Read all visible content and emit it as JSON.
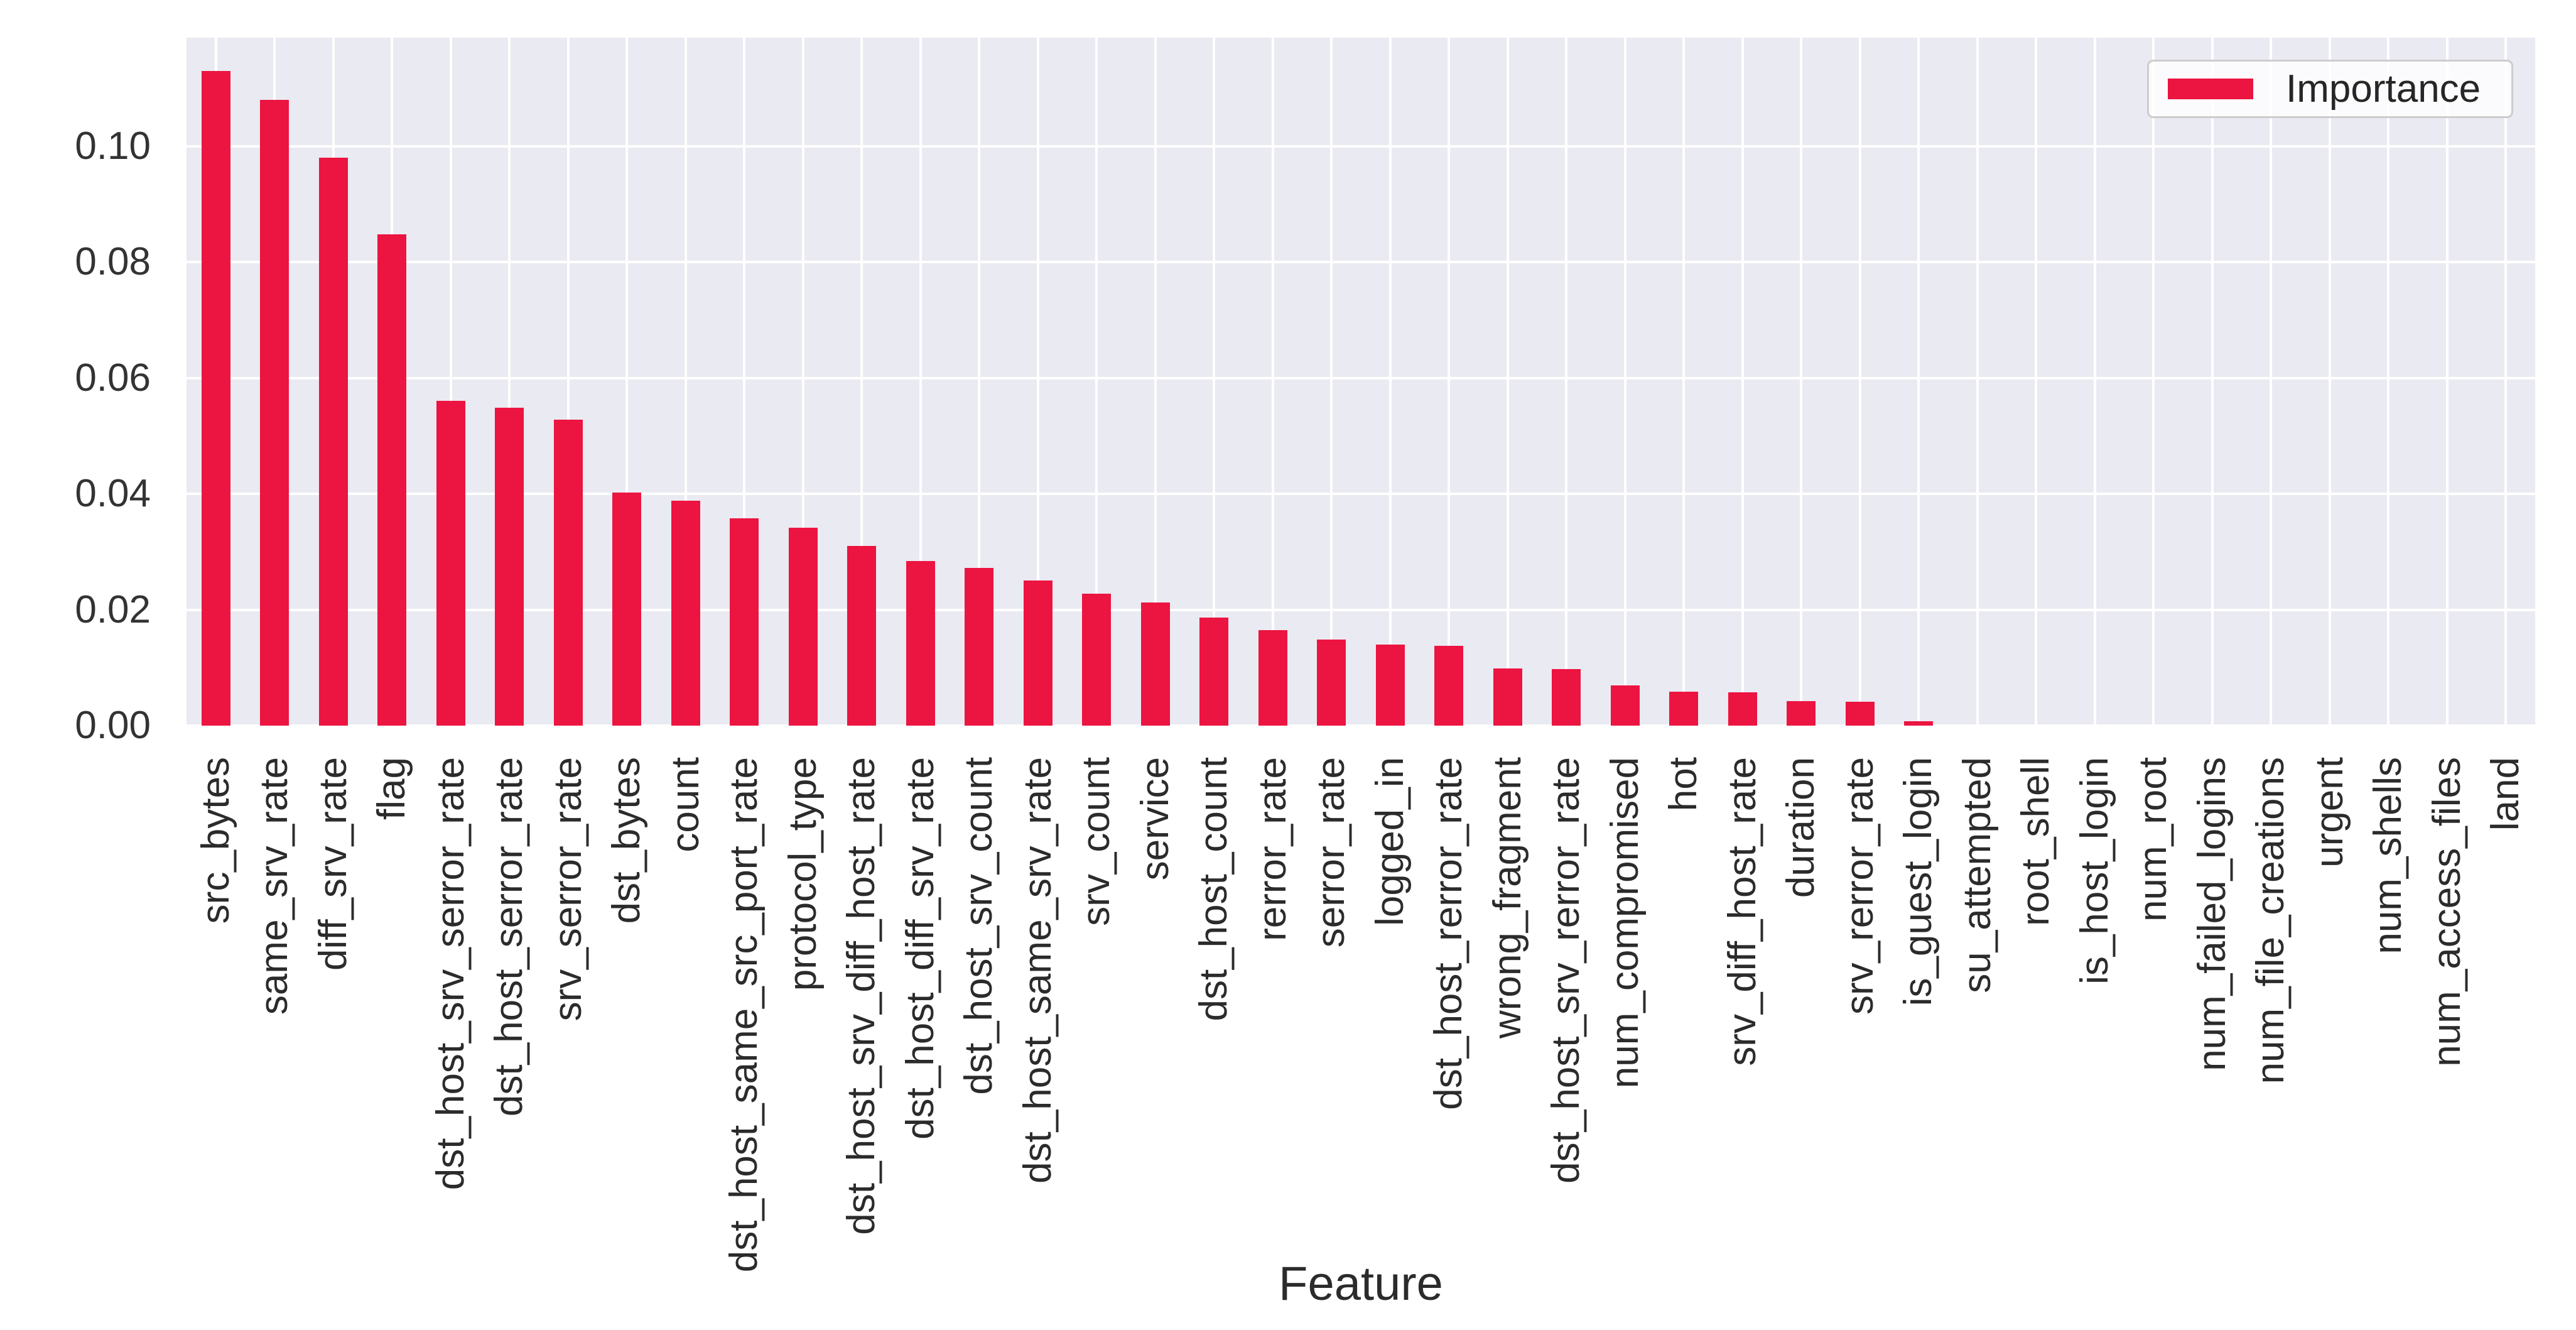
{
  "chart_data": {
    "type": "bar",
    "title": "",
    "xlabel": "Feature",
    "ylabel": "",
    "grid": true,
    "legend": {
      "label": "Importance",
      "position": "upper right"
    },
    "ylim": [
      0,
      0.1187
    ],
    "yticks": {
      "values": [
        0,
        0.02,
        0.04,
        0.06,
        0.08,
        0.1
      ],
      "labels": [
        "0.00",
        "0.02",
        "0.04",
        "0.06",
        "0.08",
        "0.10"
      ]
    },
    "categories": [
      "src_bytes",
      "same_srv_rate",
      "diff_srv_rate",
      "flag",
      "dst_host_srv_serror_rate",
      "dst_host_serror_rate",
      "srv_serror_rate",
      "dst_bytes",
      "count",
      "dst_host_same_src_port_rate",
      "protocol_type",
      "dst_host_srv_diff_host_rate",
      "dst_host_diff_srv_rate",
      "dst_host_srv_count",
      "dst_host_same_srv_rate",
      "srv_count",
      "service",
      "dst_host_count",
      "rerror_rate",
      "serror_rate",
      "logged_in",
      "dst_host_rerror_rate",
      "wrong_fragment",
      "dst_host_srv_rerror_rate",
      "num_compromised",
      "hot",
      "srv_diff_host_rate",
      "duration",
      "srv_rerror_rate",
      "is_guest_login",
      "su_attempted",
      "root_shell",
      "is_host_login",
      "num_root",
      "num_failed_logins",
      "num_file_creations",
      "urgent",
      "num_shells",
      "num_access_files",
      "land"
    ],
    "values": [
      0.113,
      0.108,
      0.098,
      0.0848,
      0.056,
      0.0548,
      0.0528,
      0.0402,
      0.0388,
      0.0358,
      0.0342,
      0.031,
      0.0284,
      0.0272,
      0.025,
      0.0228,
      0.0212,
      0.0186,
      0.0165,
      0.0148,
      0.014,
      0.0138,
      0.0099,
      0.0098,
      0.0069,
      0.0058,
      0.0057,
      0.0042,
      0.0041,
      0.0008,
      0,
      0,
      0,
      0,
      0,
      0,
      0,
      0,
      0,
      0
    ],
    "colors": {
      "bar": "#ec1440",
      "plot_background": "#eaeaf2",
      "gridline": "#ffffff",
      "tick_text": "#2b2b2b",
      "legend_border": "#cccccc"
    }
  }
}
